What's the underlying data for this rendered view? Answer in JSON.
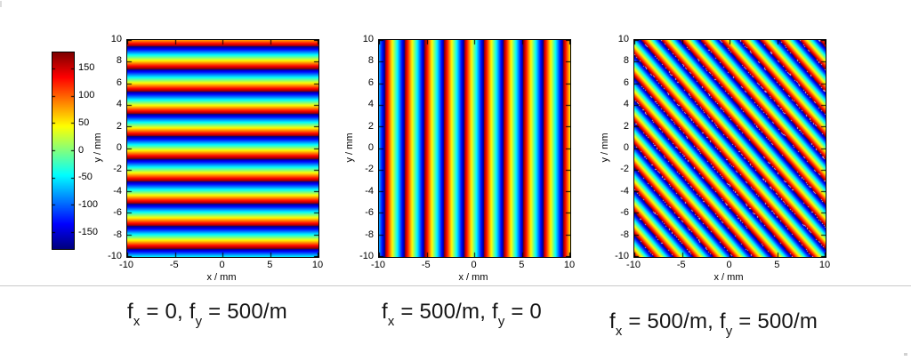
{
  "figure": {
    "description": "Wrapped phase of 2D plane waves for three spatial-frequency combinations, jet colormap",
    "background": "#ffffff",
    "separator_color": "#c9c9c9"
  },
  "colorbar": {
    "colormap": "jet",
    "min_deg": -180,
    "max_deg": 180,
    "tick_labels": [
      "150",
      "100",
      "50",
      "0",
      "-50",
      "-100",
      "-150"
    ],
    "tick_values": [
      150,
      100,
      50,
      0,
      -50,
      -100,
      -150
    ],
    "top_color": "#800000",
    "bottom_color": "#000080"
  },
  "chart_data": [
    {
      "type": "heatmap",
      "quantity": "wrapped phase (degrees)",
      "fx_per_m": 0,
      "fy_per_m": 500,
      "x_range_mm": [
        -10,
        10
      ],
      "y_range_mm": [
        -10,
        10
      ],
      "value_range_deg": [
        -180,
        180
      ],
      "xlabel": "x / mm",
      "ylabel": "y / mm",
      "x_ticks": [
        "-10",
        "-5",
        "0",
        "5",
        "10"
      ],
      "x_tick_values": [
        -10,
        -5,
        0,
        5,
        10
      ],
      "y_ticks": [
        "10",
        "8",
        "6",
        "4",
        "2",
        "0",
        "-2",
        "-4",
        "-6",
        "-8",
        "-10"
      ],
      "y_tick_values": [
        10,
        8,
        6,
        4,
        2,
        0,
        -2,
        -4,
        -6,
        -8,
        -10
      ],
      "colormap": "jet",
      "orientation": "horizontal-stripes",
      "stripe_period_mm": 2.07,
      "render": {
        "deg_per_mm_x": 0,
        "deg_per_mm_y": -173.913,
        "offset_deg": 14.8,
        "speckle": false
      },
      "caption_text": "fx = 0, fy = 500/m"
    },
    {
      "type": "heatmap",
      "quantity": "wrapped phase (degrees)",
      "fx_per_m": 500,
      "fy_per_m": 0,
      "x_range_mm": [
        -10,
        10
      ],
      "y_range_mm": [
        -10,
        10
      ],
      "value_range_deg": [
        -180,
        180
      ],
      "xlabel": "x / mm",
      "ylabel": "y / mm",
      "x_ticks": [
        "-10",
        "-5",
        "0",
        "5",
        "10"
      ],
      "x_tick_values": [
        -10,
        -5,
        0,
        5,
        10
      ],
      "y_ticks": [
        "10",
        "8",
        "6",
        "4",
        "2",
        "0",
        "-2",
        "-4",
        "-6",
        "-8",
        "-10"
      ],
      "y_tick_values": [
        10,
        8,
        6,
        4,
        2,
        0,
        -2,
        -4,
        -6,
        -8,
        -10
      ],
      "colormap": "jet",
      "orientation": "vertical-stripes",
      "stripe_period_mm": 2.07,
      "render": {
        "deg_per_mm_x": -173.913,
        "deg_per_mm_y": 0,
        "offset_deg": -11.3,
        "speckle": false
      },
      "caption_text": "fx = 500/m, fy = 0"
    },
    {
      "type": "heatmap",
      "quantity": "wrapped phase (degrees)",
      "fx_per_m": 500,
      "fy_per_m": 500,
      "x_range_mm": [
        -10,
        10
      ],
      "y_range_mm": [
        -10,
        10
      ],
      "value_range_deg": [
        -180,
        180
      ],
      "xlabel": "x / mm",
      "ylabel": "y / mm",
      "x_ticks": [
        "-10",
        "-5",
        "0",
        "5",
        "10"
      ],
      "x_tick_values": [
        -10,
        -5,
        0,
        5,
        10
      ],
      "y_ticks": [
        "10",
        "8",
        "6",
        "4",
        "2",
        "0",
        "-2",
        "-4",
        "-6",
        "-8",
        "-10"
      ],
      "y_tick_values": [
        10,
        8,
        6,
        4,
        2,
        0,
        -2,
        -4,
        -6,
        -8,
        -10
      ],
      "colormap": "jet",
      "orientation": "diagonal-stripes-45deg",
      "stripe_period_mm": 2.07,
      "render": {
        "deg_per_mm_x": -173.913,
        "deg_per_mm_y": -173.913,
        "offset_deg": -60,
        "speckle": true
      },
      "caption_text": "fx = 500/m, fy = 500/m"
    }
  ],
  "captions": [
    {
      "parts": [
        "f",
        "x",
        " = 0, ",
        "f",
        "y",
        " = 500/m"
      ]
    },
    {
      "parts": [
        "f",
        "x",
        " = 500/m, ",
        "f",
        "y",
        " = 0"
      ]
    },
    {
      "parts": [
        "f",
        "x",
        " = 500/m, ",
        "f",
        "y",
        " = 500/m"
      ]
    }
  ]
}
